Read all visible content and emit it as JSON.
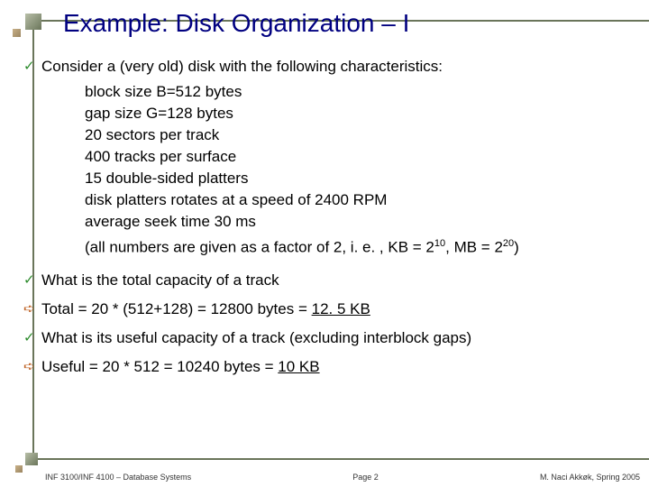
{
  "title": "Example: Disk Organization – I",
  "bullets": {
    "b1": "Consider a (very old) disk with the following characteristics:",
    "s1": "block size B=512 bytes",
    "s2": "gap size G=128 bytes",
    "s3": "20 sectors per track",
    "s4": "400 tracks per surface",
    "s5": "15 double-sided platters",
    "s6": "disk platters rotates at a speed of 2400 RPM",
    "s7": "average seek time 30 ms",
    "s8a": "(all numbers are given as a factor of 2, i. e. , KB = 2",
    "s8b": "10",
    "s8c": ", MB = 2",
    "s8d": "20",
    "s8e": ")",
    "b2": "What is the total capacity of a track",
    "b3a": "Total = 20 * (512+128) = 12800 bytes = ",
    "b3b": "12. 5 KB",
    "b4": "What is its useful capacity of a track (excluding interblock gaps)",
    "b5a": "Useful = 20 * 512 = 10240 bytes = ",
    "b5b": "10 KB"
  },
  "footer": {
    "left": "INF 3100/INF 4100 – Database Systems",
    "center": "Page 2",
    "right": "M. Naci Akkøk, Spring 2005"
  }
}
